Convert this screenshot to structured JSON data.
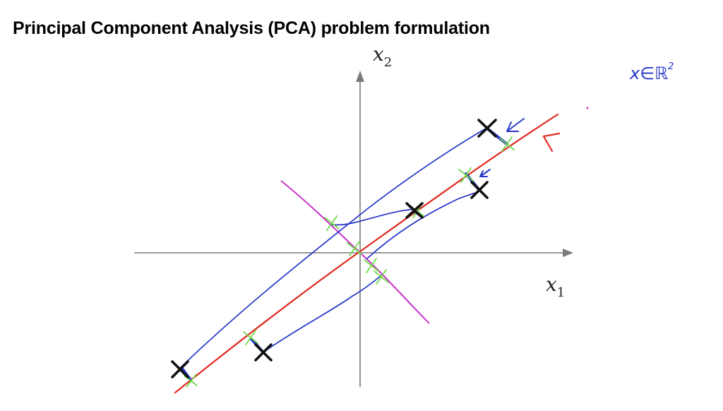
{
  "title": "Principal Component Analysis (PCA) problem formulation",
  "axes": {
    "x_symbol": "x",
    "x_subscript": "1",
    "y_symbol": "x",
    "y_subscript": "2"
  },
  "annotation": {
    "text": "x∈ℝ",
    "superscript": "2"
  },
  "colors": {
    "axis": "#7a7a7a",
    "projection_line": "#e0281e",
    "perpendicular_line": "#cc33cc",
    "connector": "#2535c8",
    "projection_marker": "#6fd94a",
    "data_point": "#111111",
    "annotation": "#2535c8"
  }
}
